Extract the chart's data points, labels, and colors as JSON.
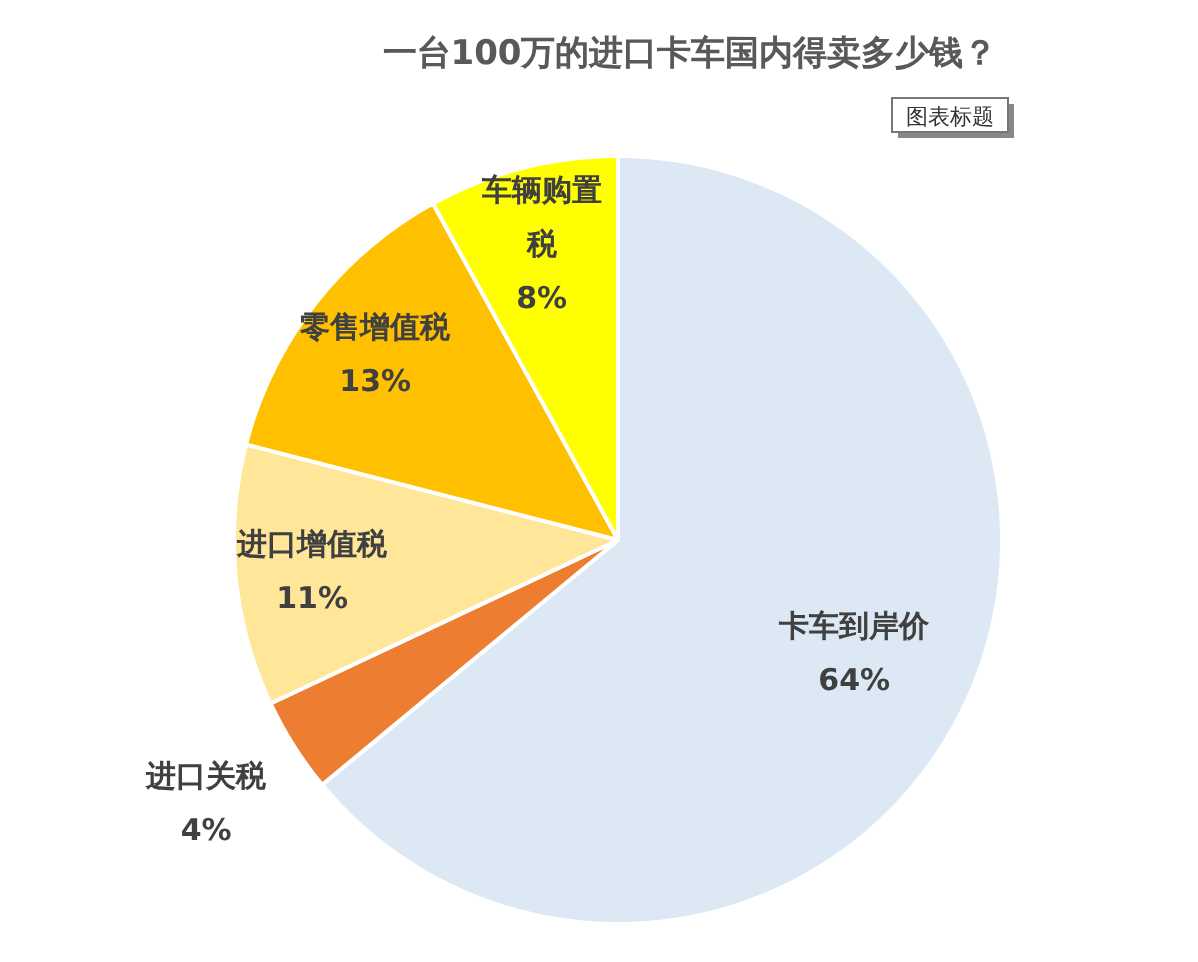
{
  "chart_data": {
    "type": "pie",
    "title": "一台100万的进口卡车国内得卖多少钱？",
    "categories": [
      "卡车到岸价",
      "进口关税",
      "进口增值税",
      "零售增值税",
      "车辆购置税"
    ],
    "values": [
      64,
      4,
      11,
      13,
      8
    ],
    "colors": [
      "#dde8f5",
      "#ed7d31",
      "#ffe699",
      "#ffc000",
      "#ffff00"
    ],
    "value_labels": [
      "64%",
      "4%",
      "11%",
      "13%",
      "8%"
    ],
    "annotations": [
      "图表标题"
    ],
    "legend": false
  }
}
